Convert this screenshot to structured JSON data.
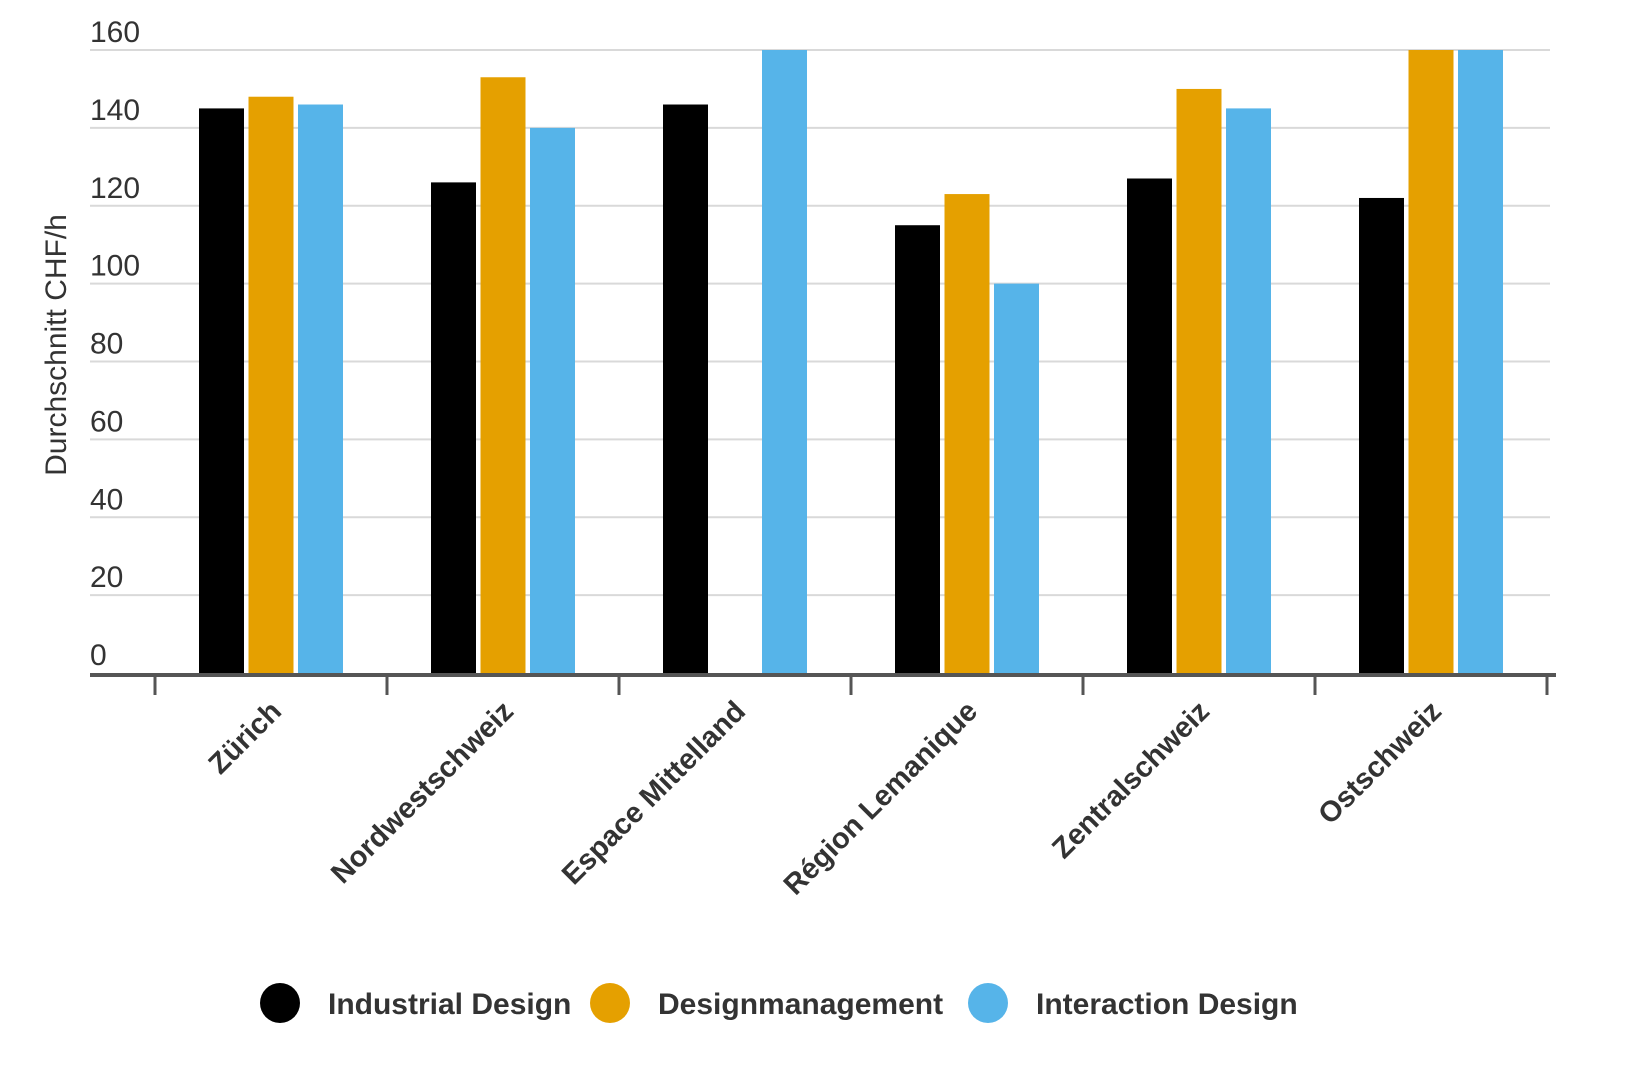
{
  "chart_data": {
    "type": "bar",
    "title": "",
    "xlabel": "",
    "ylabel": "Durchschnitt CHF/h",
    "ylim": [
      0,
      160
    ],
    "yticks": [
      0,
      20,
      40,
      60,
      80,
      100,
      120,
      140,
      160
    ],
    "grid": true,
    "legend_position": "bottom",
    "categories": [
      "Zürich",
      "Nordwestschweiz",
      "Espace Mittelland",
      "Région Lemanique",
      "Zentralschweiz",
      "Ostschweiz"
    ],
    "series": [
      {
        "name": "Industrial Design",
        "color": "#000000",
        "values": [
          145,
          126,
          146,
          115,
          127,
          122
        ]
      },
      {
        "name": "Designmanagement",
        "color": "#e5a000",
        "values": [
          148,
          153,
          null,
          123,
          150,
          160
        ]
      },
      {
        "name": "Interaction Design",
        "color": "#56b4e9",
        "values": [
          146,
          140,
          160,
          100,
          145,
          160
        ]
      }
    ]
  }
}
